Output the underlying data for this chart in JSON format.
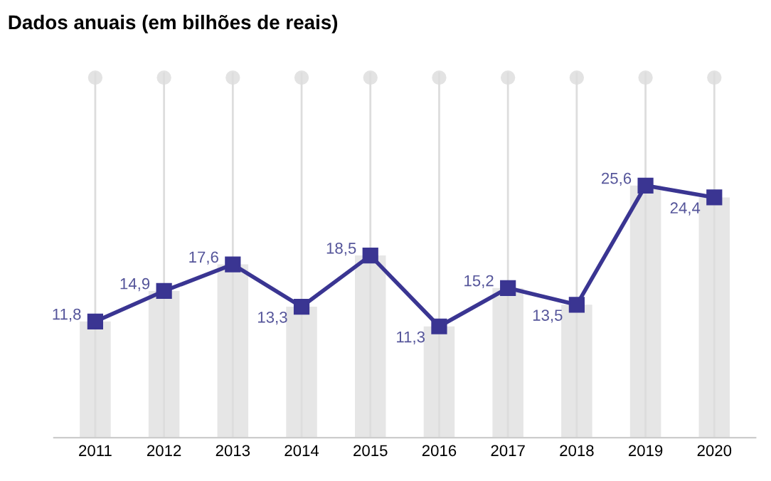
{
  "chart_data": {
    "type": "line",
    "title": "Dados anuais (em bilhões de reais)",
    "categories": [
      "2011",
      "2012",
      "2013",
      "2014",
      "2015",
      "2016",
      "2017",
      "2018",
      "2019",
      "2020"
    ],
    "series": [
      {
        "type": "bar",
        "color": "#e6e6e6",
        "values": [
          11.8,
          14.9,
          17.6,
          13.3,
          18.5,
          11.3,
          15.2,
          13.5,
          25.6,
          24.4
        ]
      },
      {
        "color": "#3a3592",
        "values": [
          11.8,
          14.9,
          17.6,
          13.3,
          18.5,
          11.3,
          15.2,
          13.5,
          25.6,
          24.4
        ],
        "value_labels": [
          "11,8",
          "14,9",
          "17,6",
          "13,3",
          "18,5",
          "11,3",
          "15,2",
          "13,5",
          "25,6",
          "24,4"
        ]
      }
    ],
    "marker": "square",
    "line_style": "solid",
    "grid": "x",
    "tick_labels": "x"
  }
}
